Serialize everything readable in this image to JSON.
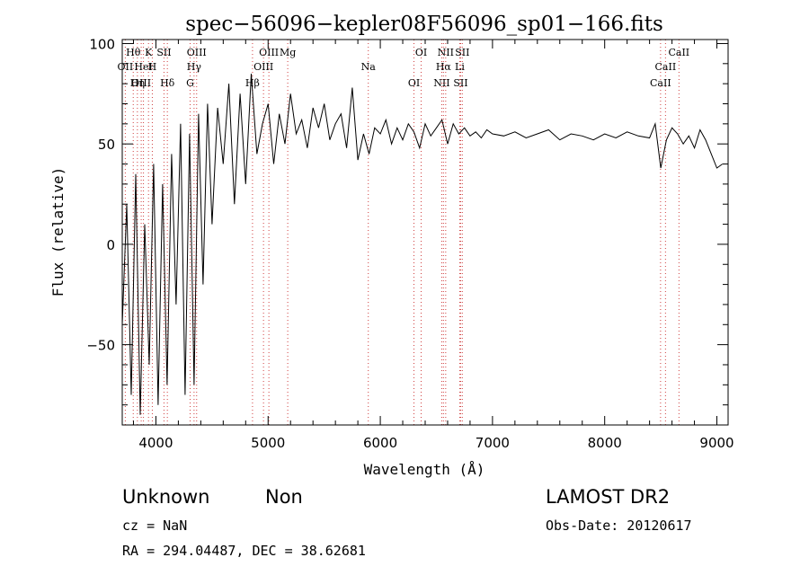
{
  "chart_data": {
    "type": "line",
    "title": "spec−56096−kepler08F56096_sp01−166.fits",
    "xlabel": "Wavelength (Å)",
    "ylabel": "Flux (relative)",
    "xlim": [
      3700,
      9100
    ],
    "ylim": [
      -90,
      102
    ],
    "x_ticks": [
      4000,
      5000,
      6000,
      7000,
      8000,
      9000
    ],
    "y_ticks": [
      -50,
      0,
      50,
      100
    ],
    "y_tick_labels": [
      "−50",
      "0",
      "50",
      "100"
    ],
    "grid": false,
    "series": [
      {
        "x": [
          3700,
          3740,
          3780,
          3820,
          3860,
          3900,
          3940,
          3980,
          4020,
          4060,
          4100,
          4140,
          4180,
          4220,
          4260,
          4300,
          4340,
          4380,
          4420,
          4460,
          4500,
          4550,
          4600,
          4650,
          4700,
          4750,
          4800,
          4850,
          4900,
          4950,
          5000,
          5050,
          5100,
          5150,
          5200,
          5250,
          5300,
          5350,
          5400,
          5450,
          5500,
          5550,
          5600,
          5650,
          5700,
          5750,
          5800,
          5850,
          5900,
          5950,
          6000,
          6050,
          6100,
          6150,
          6200,
          6250,
          6300,
          6350,
          6400,
          6450,
          6500,
          6550,
          6600,
          6650,
          6700,
          6750,
          6800,
          6850,
          6900,
          6950,
          7000,
          7100,
          7200,
          7300,
          7400,
          7500,
          7600,
          7700,
          7800,
          7900,
          8000,
          8100,
          8200,
          8300,
          8400,
          8450,
          8500,
          8550,
          8600,
          8650,
          8700,
          8750,
          8800,
          8850,
          8900,
          8950,
          9000,
          9050
        ],
        "y": [
          -40,
          20,
          -75,
          35,
          -85,
          10,
          -60,
          40,
          -80,
          30,
          -70,
          45,
          -30,
          60,
          -75,
          55,
          -70,
          65,
          -20,
          70,
          10,
          68,
          40,
          80,
          20,
          75,
          30,
          85,
          45,
          60,
          70,
          40,
          65,
          50,
          75,
          55,
          62,
          48,
          68,
          58,
          70,
          52,
          60,
          65,
          48,
          78,
          42,
          55,
          45,
          58,
          55,
          62,
          50,
          58,
          52,
          60,
          56,
          48,
          60,
          54,
          58,
          62,
          50,
          60,
          55,
          58,
          54,
          56,
          53,
          57,
          55,
          54,
          56,
          53,
          55,
          57,
          52,
          55,
          54,
          52,
          55,
          53,
          56,
          54,
          53,
          60,
          38,
          52,
          58,
          55,
          50,
          54,
          48,
          57,
          52,
          45,
          38,
          40
        ]
      }
    ],
    "lines": [
      {
        "label": "Hθ",
        "x": 3798
      },
      {
        "label": "OII",
        "x": 3727
      },
      {
        "label": "OIII",
        "x": 3869
      },
      {
        "label": "K",
        "x": 3934
      },
      {
        "label": "HeI",
        "x": 3889
      },
      {
        "label": "Hη",
        "x": 3835
      },
      {
        "label": "SII",
        "x": 4072
      },
      {
        "label": "H",
        "x": 3968
      },
      {
        "label": "Hδ",
        "x": 4102
      },
      {
        "label": "OIII",
        "x": 4363
      },
      {
        "label": "Hγ",
        "x": 4340
      },
      {
        "label": "G",
        "x": 4305
      },
      {
        "label": "OIII",
        "x": 5007
      },
      {
        "label": "OIII",
        "x": 4959
      },
      {
        "label": "Hβ",
        "x": 4861
      },
      {
        "label": "Mg",
        "x": 5175
      },
      {
        "label": "Na",
        "x": 5893
      },
      {
        "label": "OI",
        "x": 6300
      },
      {
        "label": "OI",
        "x": 6364
      },
      {
        "label": "Hα",
        "x": 6563
      },
      {
        "label": "SII",
        "x": 6716
      },
      {
        "label": "NII",
        "x": 6583
      },
      {
        "label": "Li",
        "x": 6708
      },
      {
        "label": "NII",
        "x": 6548
      },
      {
        "label": "SII",
        "x": 6731
      },
      {
        "label": "CaII",
        "x": 8542
      },
      {
        "label": "CaII",
        "x": 8498
      },
      {
        "label": "CaII",
        "x": 8662
      }
    ]
  },
  "info": {
    "class": "Unknown",
    "subclass": "Non",
    "survey": "LAMOST DR2",
    "cz": "cz = NaN",
    "obs_date": "Obs-Date: 20120617",
    "coords": "RA = 294.04487, DEC =  38.62681"
  }
}
